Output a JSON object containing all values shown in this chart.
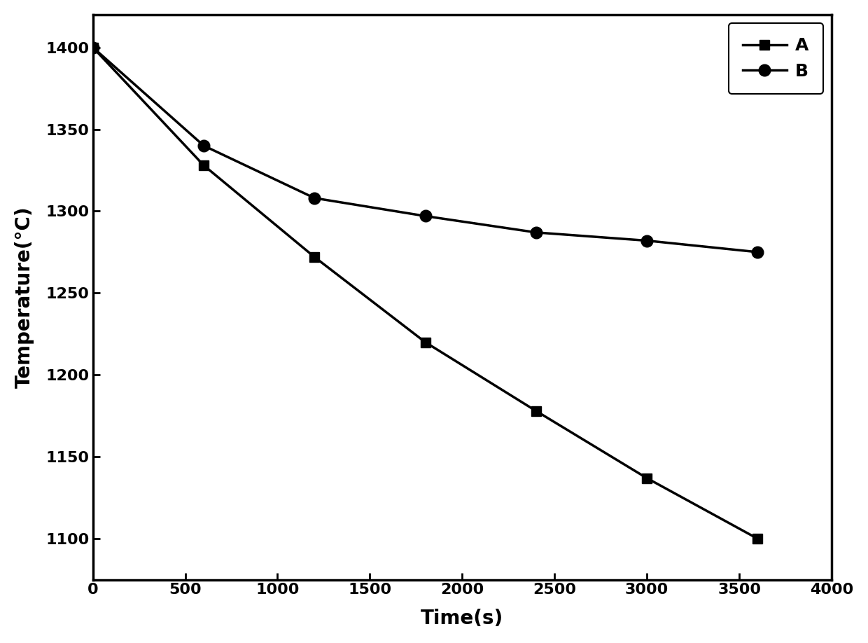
{
  "series_A": {
    "x": [
      0,
      600,
      1200,
      1800,
      2400,
      3000,
      3600
    ],
    "y": [
      1400,
      1328,
      1272,
      1220,
      1178,
      1137,
      1100
    ],
    "label": "A",
    "marker": "s",
    "color": "#000000",
    "linewidth": 2.5,
    "markersize": 10
  },
  "series_B": {
    "x": [
      0,
      600,
      1200,
      1800,
      2400,
      3000,
      3600
    ],
    "y": [
      1400,
      1340,
      1308,
      1297,
      1287,
      1282,
      1275
    ],
    "label": "B",
    "marker": "o",
    "color": "#000000",
    "linewidth": 2.5,
    "markersize": 12
  },
  "xlabel": "Time(s)",
  "ylabel": "Temperature(°C)",
  "xlim": [
    0,
    4000
  ],
  "ylim": [
    1075,
    1420
  ],
  "xticks": [
    0,
    500,
    1000,
    1500,
    2000,
    2500,
    3000,
    3500,
    4000
  ],
  "yticks": [
    1100,
    1150,
    1200,
    1250,
    1300,
    1350,
    1400
  ],
  "background_color": "#ffffff",
  "axis_label_fontsize": 20,
  "tick_fontsize": 16,
  "legend_fontsize": 18
}
